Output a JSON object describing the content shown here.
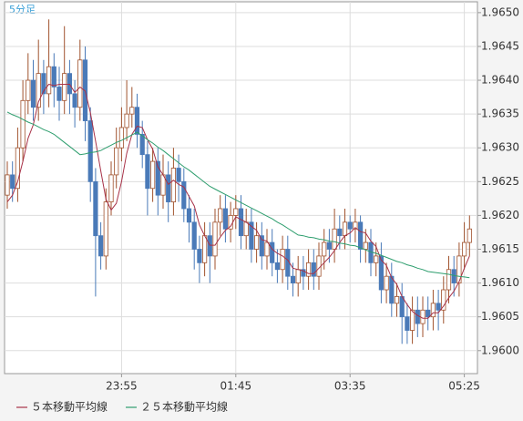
{
  "chart_data": {
    "type": "candlestick",
    "timeframe_label": "5分足",
    "categories": [
      null,
      null,
      null,
      null,
      null,
      null,
      null,
      null,
      null,
      null,
      null,
      null,
      null,
      null,
      null,
      null,
      null,
      null,
      null,
      null,
      null,
      null,
      "23:55",
      null,
      null,
      null,
      null,
      null,
      null,
      null,
      null,
      null,
      null,
      null,
      null,
      null,
      null,
      null,
      null,
      null,
      null,
      null,
      null,
      null,
      "01:45",
      null,
      null,
      null,
      null,
      null,
      null,
      null,
      null,
      null,
      null,
      null,
      null,
      null,
      null,
      null,
      null,
      null,
      null,
      null,
      null,
      null,
      "03:35",
      null,
      null,
      null,
      null,
      null,
      null,
      null,
      null,
      null,
      null,
      null,
      null,
      null,
      null,
      null,
      null,
      null,
      null,
      null,
      null,
      null,
      "05:25",
      null
    ],
    "open": [
      1.9623,
      1.9626,
      1.9624,
      1.963,
      1.9637,
      1.964,
      1.9636,
      1.9641,
      1.9638,
      1.9642,
      1.9639,
      1.9637,
      1.9641,
      1.9638,
      1.9636,
      1.9643,
      1.9634,
      1.9625,
      1.9617,
      1.9614,
      1.9622,
      1.9626,
      1.963,
      1.9633,
      1.9635,
      1.9636,
      1.9632,
      1.9629,
      1.9624,
      1.9628,
      1.9623,
      1.9626,
      1.9622,
      1.9627,
      1.9625,
      1.9621,
      1.9619,
      1.9615,
      1.9613,
      1.9617,
      1.9614,
      1.9619,
      1.9621,
      1.9618,
      1.962,
      1.9621,
      1.9617,
      1.9619,
      1.9615,
      1.9617,
      1.9614,
      1.9616,
      1.9613,
      1.9612,
      1.9615,
      1.9611,
      1.961,
      1.9612,
      1.9611,
      1.9613,
      1.9611,
      1.9614,
      1.9616,
      1.9615,
      1.9618,
      1.9617,
      1.9619,
      1.9618,
      1.9619,
      1.9615,
      1.9616,
      1.9613,
      1.9614,
      1.9609,
      1.9611,
      1.9607,
      1.9608,
      1.9605,
      1.9603,
      1.9606,
      1.9604,
      1.9606,
      1.9605,
      1.9607,
      1.9606,
      1.9609,
      1.9612,
      1.961,
      1.9614,
      1.9616
    ],
    "high": [
      1.9628,
      1.9628,
      1.9633,
      1.964,
      1.9644,
      1.9643,
      1.9646,
      1.9643,
      1.9649,
      1.9644,
      1.9642,
      1.9648,
      1.9643,
      1.964,
      1.9646,
      1.9645,
      1.9636,
      1.9627,
      1.9619,
      1.9624,
      1.9628,
      1.9633,
      1.9636,
      1.964,
      1.9639,
      1.9638,
      1.9634,
      1.9631,
      1.963,
      1.963,
      1.9629,
      1.9628,
      1.963,
      1.9629,
      1.9627,
      1.9623,
      1.9621,
      1.9617,
      1.9619,
      1.9619,
      1.9621,
      1.9623,
      1.9623,
      1.9622,
      1.9623,
      1.9623,
      1.9621,
      1.9621,
      1.9619,
      1.9619,
      1.9618,
      1.9618,
      1.9615,
      1.9617,
      1.9617,
      1.9613,
      1.9614,
      1.9614,
      1.9615,
      1.9615,
      1.9616,
      1.9618,
      1.9618,
      1.9621,
      1.962,
      1.9621,
      1.962,
      1.9621,
      1.962,
      1.9618,
      1.9618,
      1.9616,
      1.9616,
      1.9613,
      1.9613,
      1.961,
      1.961,
      1.9607,
      1.9608,
      1.9608,
      1.9608,
      1.9608,
      1.9609,
      1.9609,
      1.9611,
      1.9614,
      1.9614,
      1.9616,
      1.9619,
      1.962
    ],
    "low": [
      1.9621,
      1.9622,
      1.9622,
      1.9628,
      1.9635,
      1.9634,
      1.9634,
      1.9635,
      1.9636,
      1.9636,
      1.9634,
      1.9635,
      1.9635,
      1.9633,
      1.9634,
      1.9631,
      1.9622,
      1.9608,
      1.9612,
      1.9612,
      1.962,
      1.9624,
      1.9628,
      1.9631,
      1.9633,
      1.963,
      1.9627,
      1.962,
      1.9622,
      1.962,
      1.9621,
      1.9619,
      1.962,
      1.9622,
      1.9619,
      1.9616,
      1.9612,
      1.961,
      1.9611,
      1.961,
      1.9612,
      1.9617,
      1.9616,
      1.9616,
      1.9618,
      1.9615,
      1.9615,
      1.9613,
      1.9613,
      1.9612,
      1.9612,
      1.9611,
      1.961,
      1.961,
      1.9609,
      1.9608,
      1.9608,
      1.9609,
      1.9609,
      1.9609,
      1.9609,
      1.9612,
      1.9613,
      1.9613,
      1.9615,
      1.9615,
      1.9616,
      1.9616,
      1.9613,
      1.9613,
      1.9611,
      1.9611,
      1.9607,
      1.9607,
      1.9605,
      1.9605,
      1.9601,
      1.9601,
      1.9601,
      1.9602,
      1.9602,
      1.9603,
      1.9603,
      1.9603,
      1.9604,
      1.9607,
      1.9608,
      1.9608,
      1.9612,
      1.9614
    ],
    "close": [
      1.9626,
      1.9624,
      1.963,
      1.9637,
      1.964,
      1.9636,
      1.9641,
      1.9638,
      1.9642,
      1.9639,
      1.9637,
      1.9641,
      1.9638,
      1.9636,
      1.9643,
      1.9634,
      1.9625,
      1.9617,
      1.9614,
      1.9622,
      1.9626,
      1.963,
      1.9633,
      1.9635,
      1.9636,
      1.9632,
      1.9629,
      1.9624,
      1.9628,
      1.9623,
      1.9626,
      1.9622,
      1.9627,
      1.9625,
      1.9621,
      1.9619,
      1.9615,
      1.9613,
      1.9617,
      1.9614,
      1.9619,
      1.9621,
      1.9618,
      1.962,
      1.9621,
      1.9617,
      1.9619,
      1.9615,
      1.9617,
      1.9614,
      1.9616,
      1.9613,
      1.9612,
      1.9615,
      1.9611,
      1.961,
      1.9612,
      1.9611,
      1.9613,
      1.9611,
      1.9614,
      1.9616,
      1.9615,
      1.9618,
      1.9617,
      1.9619,
      1.9618,
      1.9619,
      1.9615,
      1.9616,
      1.9613,
      1.9614,
      1.9609,
      1.9611,
      1.9607,
      1.9608,
      1.9605,
      1.9603,
      1.9606,
      1.9604,
      1.9606,
      1.9605,
      1.9607,
      1.9606,
      1.9609,
      1.9612,
      1.961,
      1.9614,
      1.9616,
      1.9618
    ],
    "up_color": "#a0522d",
    "down_color": "#4a7ab8",
    "series": [
      {
        "name": "５本移動平均線",
        "color": "#a83248",
        "values": [
          1.9622,
          1.9623,
          1.9625,
          1.9628,
          1.96314,
          1.96334,
          1.96368,
          1.96384,
          1.96394,
          1.96392,
          1.96394,
          1.96394,
          1.96394,
          1.96382,
          1.9639,
          1.96384,
          1.96352,
          1.9631,
          1.96266,
          1.96224,
          1.96208,
          1.96218,
          1.9625,
          1.96292,
          1.9632,
          1.96332,
          1.9633,
          1.96312,
          1.96298,
          1.96272,
          1.9626,
          1.96246,
          1.96252,
          1.96246,
          1.96242,
          1.96228,
          1.96214,
          1.96186,
          1.9617,
          1.96156,
          1.96156,
          1.96168,
          1.96178,
          1.96184,
          1.96198,
          1.96194,
          1.9619,
          1.96184,
          1.96178,
          1.96164,
          1.96162,
          1.9615,
          1.96144,
          1.9614,
          1.96134,
          1.96122,
          1.9612,
          1.96118,
          1.96114,
          1.96114,
          1.96122,
          1.9613,
          1.96138,
          1.96148,
          1.9616,
          1.9617,
          1.96174,
          1.96182,
          1.96176,
          1.96174,
          1.96162,
          1.96154,
          1.96134,
          1.96126,
          1.96108,
          1.96098,
          1.9608,
          1.96068,
          1.96058,
          1.96052,
          1.96048,
          1.96048,
          1.96056,
          1.96056,
          1.96066,
          1.96078,
          1.96088,
          1.96102,
          1.96122,
          1.9614
        ]
      },
      {
        "name": "２５本移動平均線",
        "color": "#2e9e6e",
        "values": [
          1.96353,
          1.96349,
          1.96346,
          1.96342,
          1.96338,
          1.96335,
          1.96331,
          1.96327,
          1.96324,
          1.9632,
          1.96314,
          1.96308,
          1.96302,
          1.96296,
          1.9629,
          1.96291,
          1.96293,
          1.96294,
          1.96296,
          1.963,
          1.96304,
          1.96308,
          1.96311,
          1.96315,
          1.96319,
          1.96323,
          1.96318,
          1.96312,
          1.96307,
          1.96301,
          1.96296,
          1.9629,
          1.96284,
          1.96278,
          1.96272,
          1.96267,
          1.96261,
          1.96255,
          1.96249,
          1.96243,
          1.96239,
          1.96235,
          1.96231,
          1.96227,
          1.96223,
          1.96219,
          1.96215,
          1.96211,
          1.96207,
          1.96203,
          1.96199,
          1.96195,
          1.9619,
          1.96186,
          1.96181,
          1.96176,
          1.96171,
          1.9617,
          1.96168,
          1.96167,
          1.96165,
          1.96164,
          1.96162,
          1.96161,
          1.96159,
          1.96158,
          1.96156,
          1.96155,
          1.96152,
          1.96149,
          1.96146,
          1.96144,
          1.96141,
          1.96138,
          1.96135,
          1.96132,
          1.9613,
          1.96127,
          1.96125,
          1.96122,
          1.9612,
          1.96117,
          1.96116,
          1.96115,
          1.96114,
          1.96113,
          1.96111,
          1.9611,
          1.96109,
          1.96108
        ]
      }
    ],
    "ylim": [
      1.95966,
      1.96516
    ],
    "yticks": [
      {
        "value": 1.96,
        "label": "1.9600"
      },
      1.9605,
      {
        "value": 1.961,
        "label": "1.9610"
      },
      1.9615,
      {
        "value": 1.962,
        "label": "1.9620"
      },
      1.9625,
      {
        "value": 1.963,
        "label": "1.9630"
      },
      1.9635,
      {
        "value": 1.964,
        "label": "1.9640"
      },
      1.9645,
      {
        "value": 1.965,
        "label": "1.9650"
      }
    ],
    "grid": true
  }
}
